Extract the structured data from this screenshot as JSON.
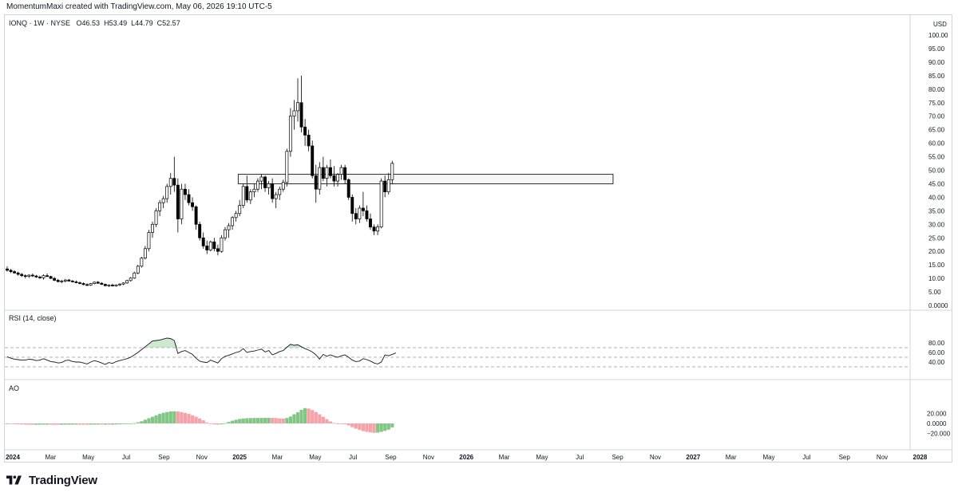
{
  "attribution": "MomentumMaxi created with TradingView.com, May 06, 2026 19:10 UTC-5",
  "legend": {
    "symbol": "IONQ · 1W · NYSE",
    "open": "O46.53",
    "high": "H53.49",
    "low": "L44.79",
    "close": "C52.57"
  },
  "price_axis": {
    "currency": "USD",
    "labels": [
      "100.00",
      "95.00",
      "90.00",
      "85.00",
      "80.00",
      "75.00",
      "70.00",
      "65.00",
      "60.00",
      "55.00",
      "50.00",
      "45.00",
      "40.00",
      "35.00",
      "30.00",
      "25.00",
      "20.00",
      "15.00",
      "10.00",
      "5.00",
      "0.0000"
    ]
  },
  "rsi_pane": {
    "title": "RSI (14, close)",
    "labels": [
      "80.00",
      "60.00",
      "40.00"
    ]
  },
  "ao_pane": {
    "title": "AO",
    "labels": [
      "20.000",
      "0.0000",
      "−20.000"
    ]
  },
  "time_axis": [
    "2024",
    "Mar",
    "May",
    "Jul",
    "Sep",
    "Nov",
    "2025",
    "Mar",
    "May",
    "Jul",
    "Sep",
    "Nov",
    "2026",
    "Mar",
    "May",
    "Jul",
    "Sep",
    "Nov",
    "2027",
    "Mar",
    "May",
    "Jul",
    "Sep",
    "Nov",
    "2028"
  ],
  "brand": "TradingView",
  "colors": {
    "up": "#ffffff",
    "down": "#000000",
    "ao_up": "#81c784",
    "ao_down": "#f7a1a8",
    "rsi_line": "#131722",
    "rsi_fill": "#a5d6a7",
    "zone": "#f0f0f0"
  },
  "chart_data": {
    "type": "candlestick",
    "timeframe": "1W",
    "y_range": [
      0,
      100
    ],
    "zone": {
      "low": 45,
      "high": 48.5,
      "from": "2024-12",
      "to": "2026-07"
    },
    "candles_ohlc": [
      [
        13.5,
        14.5,
        12.5,
        13.0
      ],
      [
        13.0,
        13.5,
        12.0,
        12.5
      ],
      [
        12.5,
        13.0,
        11.8,
        12.0
      ],
      [
        12.0,
        12.5,
        11.0,
        11.5
      ],
      [
        11.5,
        12.0,
        10.5,
        11.0
      ],
      [
        11.0,
        11.5,
        10.0,
        10.8
      ],
      [
        10.8,
        11.5,
        10.2,
        11.2
      ],
      [
        11.2,
        11.8,
        10.5,
        10.9
      ],
      [
        10.9,
        11.3,
        10.2,
        10.5
      ],
      [
        10.5,
        11.0,
        9.8,
        10.2
      ],
      [
        10.2,
        11.5,
        9.5,
        11.0
      ],
      [
        11.0,
        11.8,
        10.5,
        10.7
      ],
      [
        10.7,
        11.0,
        9.8,
        10.0
      ],
      [
        10.0,
        10.5,
        9.0,
        9.3
      ],
      [
        9.3,
        9.8,
        8.5,
        8.8
      ],
      [
        8.8,
        9.5,
        8.2,
        9.0
      ],
      [
        9.0,
        9.8,
        8.5,
        9.4
      ],
      [
        9.4,
        9.8,
        8.8,
        9.0
      ],
      [
        9.0,
        9.4,
        8.5,
        8.7
      ],
      [
        8.7,
        9.2,
        8.2,
        8.4
      ],
      [
        8.4,
        8.8,
        7.8,
        8.1
      ],
      [
        8.1,
        8.5,
        7.5,
        7.7
      ],
      [
        7.7,
        8.2,
        7.2,
        7.5
      ],
      [
        7.5,
        8.3,
        7.2,
        8.1
      ],
      [
        8.1,
        8.8,
        7.8,
        8.6
      ],
      [
        8.6,
        9.0,
        8.0,
        8.2
      ],
      [
        8.2,
        8.6,
        7.6,
        7.8
      ],
      [
        7.8,
        8.1,
        7.0,
        7.3
      ],
      [
        7.3,
        7.8,
        6.8,
        7.5
      ],
      [
        7.5,
        8.0,
        7.0,
        7.2
      ],
      [
        7.2,
        7.8,
        6.9,
        7.6
      ],
      [
        7.6,
        8.2,
        7.2,
        7.9
      ],
      [
        7.9,
        8.5,
        7.5,
        8.3
      ],
      [
        8.3,
        9.5,
        8.0,
        9.2
      ],
      [
        9.2,
        10.5,
        8.8,
        10.1
      ],
      [
        10.1,
        12.5,
        9.8,
        12.0
      ],
      [
        12.0,
        15.0,
        11.5,
        14.5
      ],
      [
        14.5,
        18.0,
        14.0,
        17.5
      ],
      [
        17.5,
        22.0,
        17.0,
        21.0
      ],
      [
        21.0,
        28.0,
        20.0,
        27.0
      ],
      [
        27.0,
        31.0,
        25.0,
        30.0
      ],
      [
        30.0,
        36.0,
        29.0,
        35.0
      ],
      [
        35.0,
        39.0,
        33.0,
        38.0
      ],
      [
        38.0,
        40.5,
        36.0,
        39.5
      ],
      [
        39.5,
        45.0,
        38.0,
        44.0
      ],
      [
        44.0,
        49.0,
        41.0,
        47.0
      ],
      [
        47.0,
        55.0,
        42.0,
        44.5
      ],
      [
        44.5,
        47.0,
        27.0,
        32.0
      ],
      [
        32.0,
        45.0,
        30.0,
        43.0
      ],
      [
        43.0,
        45.0,
        39.0,
        41.0
      ],
      [
        41.0,
        43.0,
        37.0,
        38.0
      ],
      [
        38.0,
        40.0,
        35.0,
        36.5
      ],
      [
        36.5,
        37.0,
        28.0,
        30.0
      ],
      [
        30.0,
        31.0,
        24.0,
        25.0
      ],
      [
        25.0,
        27.0,
        21.0,
        22.0
      ],
      [
        22.0,
        24.0,
        19.0,
        20.5
      ],
      [
        20.5,
        24.0,
        20.0,
        23.5
      ],
      [
        23.5,
        25.0,
        20.0,
        21.0
      ],
      [
        21.0,
        22.5,
        18.5,
        20.0
      ],
      [
        20.0,
        26.0,
        19.5,
        25.0
      ],
      [
        25.0,
        29.0,
        24.0,
        28.0
      ],
      [
        28.0,
        30.5,
        25.0,
        29.5
      ],
      [
        29.5,
        33.0,
        28.0,
        32.5
      ],
      [
        32.5,
        35.0,
        31.0,
        34.0
      ],
      [
        34.0,
        39.0,
        33.0,
        37.0
      ],
      [
        37.0,
        45.0,
        36.0,
        44.0
      ],
      [
        44.0,
        48.0,
        38.0,
        39.0
      ],
      [
        39.0,
        43.0,
        37.5,
        42.0
      ],
      [
        42.0,
        45.0,
        40.0,
        43.0
      ],
      [
        43.0,
        47.0,
        42.0,
        46.0
      ],
      [
        46.0,
        48.5,
        43.0,
        47.5
      ],
      [
        47.5,
        48.0,
        42.0,
        43.5
      ],
      [
        43.5,
        46.0,
        41.0,
        45.0
      ],
      [
        45.0,
        47.0,
        38.0,
        39.5
      ],
      [
        39.5,
        42.0,
        36.0,
        41.0
      ],
      [
        41.0,
        44.0,
        39.0,
        43.0
      ],
      [
        43.0,
        46.5,
        42.0,
        45.5
      ],
      [
        45.5,
        58.0,
        44.0,
        57.0
      ],
      [
        57.0,
        73.0,
        55.0,
        70.0
      ],
      [
        70.0,
        76.0,
        65.0,
        72.0
      ],
      [
        72.0,
        84.0,
        68.0,
        75.0
      ],
      [
        75.0,
        85.0,
        64.0,
        66.0
      ],
      [
        66.0,
        69.0,
        59.0,
        63.0
      ],
      [
        63.0,
        65.0,
        57.0,
        59.0
      ],
      [
        59.0,
        61.0,
        47.0,
        48.0
      ],
      [
        48.0,
        52.0,
        38.0,
        43.0
      ],
      [
        43.0,
        53.0,
        41.0,
        51.0
      ],
      [
        51.0,
        55.0,
        46.0,
        47.0
      ],
      [
        47.0,
        52.0,
        44.0,
        51.0
      ],
      [
        51.0,
        54.0,
        47.0,
        48.0
      ],
      [
        48.0,
        51.5,
        44.0,
        46.0
      ],
      [
        46.0,
        49.0,
        44.0,
        48.5
      ],
      [
        48.5,
        52.0,
        46.5,
        51.0
      ],
      [
        51.0,
        52.0,
        45.0,
        46.5
      ],
      [
        46.5,
        47.0,
        39.0,
        40.0
      ],
      [
        40.0,
        41.0,
        31.0,
        34.0
      ],
      [
        34.0,
        36.0,
        30.0,
        32.0
      ],
      [
        32.0,
        37.0,
        30.5,
        36.0
      ],
      [
        36.0,
        42.0,
        33.0,
        35.0
      ],
      [
        35.0,
        37.0,
        31.0,
        32.0
      ],
      [
        32.0,
        34.0,
        28.0,
        29.0
      ],
      [
        29.0,
        30.0,
        26.0,
        27.5
      ],
      [
        27.5,
        30.0,
        26.0,
        29.0
      ],
      [
        29.0,
        47.0,
        28.5,
        46.0
      ],
      [
        46.0,
        48.0,
        40.0,
        42.0
      ],
      [
        42.0,
        49.0,
        41.0,
        46.5
      ],
      [
        46.53,
        53.49,
        44.79,
        52.57
      ]
    ],
    "rsi": [
      51,
      48,
      46,
      45,
      44,
      44,
      46,
      45,
      43,
      44,
      47,
      44,
      41,
      40,
      38,
      39,
      43,
      44,
      41,
      40,
      40,
      38,
      36,
      40,
      43,
      41,
      38,
      35,
      39,
      37,
      41,
      43,
      45,
      47,
      50,
      55,
      60,
      66,
      72,
      78,
      84,
      85,
      86,
      88,
      90,
      89,
      85,
      58,
      62,
      64,
      60,
      56,
      48,
      42,
      40,
      39,
      44,
      41,
      38,
      47,
      52,
      54,
      57,
      60,
      62,
      68,
      60,
      62,
      63,
      65,
      67,
      61,
      64,
      55,
      58,
      62,
      64,
      71,
      77,
      75,
      76,
      72,
      68,
      65,
      61,
      55,
      46,
      56,
      52,
      55,
      52,
      50,
      53,
      55,
      50,
      44,
      41,
      42,
      47,
      45,
      42,
      38,
      36,
      40,
      55,
      53,
      56,
      59
    ],
    "ao": [
      -0.5,
      -1,
      -1.5,
      -1.8,
      -2,
      -2.3,
      -2.5,
      -2.6,
      -2.6,
      -2.5,
      -2.4,
      -2.4,
      -2.5,
      -2.6,
      -2.7,
      -2.6,
      -2.4,
      -2.3,
      -2.3,
      -2.3,
      -2.4,
      -2.5,
      -2.6,
      -2.4,
      -2.2,
      -2.2,
      -2.3,
      -2.3,
      -2.4,
      -2.3,
      -2.1,
      -1.8,
      -1.5,
      -1.1,
      -0.6,
      0.5,
      2.2,
      4.5,
      7.5,
      10.5,
      13.5,
      16.5,
      19.2,
      21.5,
      23,
      24.3,
      24.5,
      24.2,
      23,
      21.3,
      19.2,
      16.5,
      13.5,
      10,
      6.2,
      2,
      -0.8,
      -2,
      -2.3,
      -1.8,
      0.5,
      3,
      5.5,
      7.5,
      9,
      10,
      10.5,
      10.8,
      11,
      11,
      11.2,
      11.4,
      11.5,
      11.2,
      10.8,
      10.2,
      9.8,
      11,
      14,
      18.5,
      22.5,
      27.5,
      31,
      30,
      27,
      23,
      18.5,
      13.5,
      8.5,
      4,
      1,
      0,
      -0.5,
      -1.5,
      -4,
      -7.5,
      -10.5,
      -13,
      -15.5,
      -17,
      -18,
      -19,
      -18.5,
      -17,
      -15,
      -12.5,
      -8
    ]
  }
}
